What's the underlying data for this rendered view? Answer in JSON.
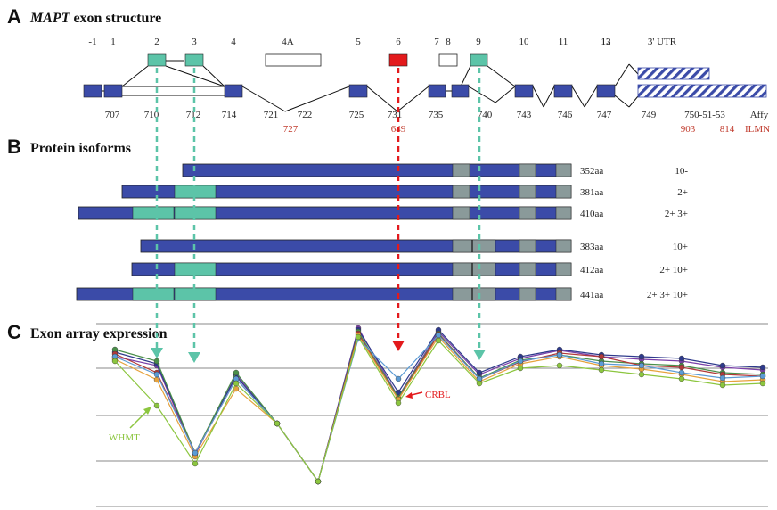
{
  "panels": {
    "a": {
      "letter": "A",
      "title_italic": "MAPT",
      "title_rest": " exon structure"
    },
    "b": {
      "letter": "B",
      "title": "Protein isoforms"
    },
    "c": {
      "letter": "C",
      "title": "Exon array expression"
    }
  },
  "exon_labels": [
    "-1",
    "1",
    "2",
    "3",
    "4",
    "4A",
    "5",
    "6",
    "7",
    "8",
    "9",
    "10",
    "11",
    "12",
    "13",
    "3' UTR"
  ],
  "probe_labels": [
    "707",
    "710",
    "712",
    "714",
    "721",
    "722",
    "725",
    "731",
    "735",
    "740",
    "743",
    "746",
    "747",
    "749",
    "750-51-53",
    "Affy"
  ],
  "red_probe_labels": [
    "727",
    "649",
    "903",
    "814",
    "ILMN"
  ],
  "isoforms": [
    {
      "size": "352aa",
      "exons": "10-"
    },
    {
      "size": "381aa",
      "exons": "2+"
    },
    {
      "size": "410aa",
      "exons": "2+ 3+"
    },
    {
      "size": "383aa",
      "exons": "10+"
    },
    {
      "size": "412aa",
      "exons": "2+ 10+"
    },
    {
      "size": "441aa",
      "exons": "2+ 3+ 10+"
    }
  ],
  "annotations": {
    "crbl": "CRBL",
    "whmt": "WHMT"
  },
  "colors": {
    "exon": "#3b4ba8",
    "alt_exon": "#5cc4a8",
    "exon6": "#e31a1c",
    "grey_segment": "#8a9a9a",
    "crbl": "#e31a1c",
    "whmt": "#8cc63f"
  },
  "chart_data": {
    "type": "line",
    "series": [
      {
        "values": [
          400,
          410,
          510,
          420,
          475,
          540,
          368,
          445,
          372,
          420,
          402,
          393,
          400,
          403,
          405,
          412,
          415,
          408
        ]
      },
      {
        "values": [
          395,
          408,
          508,
          422,
          475,
          540,
          370,
          440,
          370,
          418,
          400,
          392,
          398,
          400,
          402,
          410,
          412,
          405
        ]
      },
      {
        "values": [
          392,
          405,
          508,
          418,
          475,
          540,
          372,
          446,
          374,
          424,
          404,
          398,
          405,
          408,
          410,
          418,
          420,
          412
        ]
      },
      {
        "values": [
          397,
          418,
          508,
          425,
          475,
          540,
          374,
          448,
          375,
          425,
          406,
          396,
          400,
          410,
          412,
          420,
          422,
          408
        ]
      },
      {
        "values": [
          403,
          426,
          512,
          436,
          475,
          540,
          376,
          448,
          378,
          428,
          408,
          400,
          410,
          414,
          420,
          428,
          426,
          418
        ]
      },
      {
        "values": [
          400,
          420,
          508,
          425,
          475,
          540,
          380,
          425,
          376,
          425,
          405,
          398,
          408,
          410,
          418,
          424,
          422,
          414
        ]
      },
      {
        "values": [
          405,
          455,
          520,
          430,
          475,
          540,
          378,
          452,
          382,
          430,
          413,
          410,
          415,
          420,
          425,
          432,
          430,
          430
        ]
      }
    ]
  }
}
